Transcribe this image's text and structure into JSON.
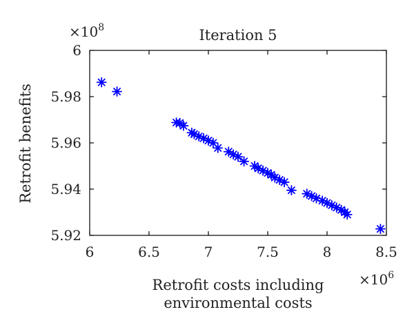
{
  "chart_data": {
    "type": "scatter",
    "title": "Iteration 5",
    "xlabel_line1": "Retrofit costs including",
    "xlabel_line2": "environmental costs",
    "ylabel": "Retrofit benefits",
    "x_multiplier_base": "×10",
    "x_multiplier_exp": "6",
    "y_multiplier_base": "×10",
    "y_multiplier_exp": "8",
    "xlim": [
      6,
      8.5
    ],
    "ylim": [
      5.92,
      6
    ],
    "xticks": [
      6,
      6.5,
      7,
      7.5,
      8,
      8.5
    ],
    "xtick_labels": [
      "6",
      "6.5",
      "7",
      "7.5",
      "8",
      "8.5"
    ],
    "yticks": [
      5.92,
      5.94,
      5.96,
      5.98,
      6
    ],
    "ytick_labels": [
      "5.92",
      "5.94",
      "5.96",
      "5.98",
      "6"
    ],
    "marker": "asterisk",
    "color": "#0000ff",
    "points": [
      [
        6.1,
        5.9862
      ],
      [
        6.23,
        5.9822
      ],
      [
        6.73,
        5.9688
      ],
      [
        6.76,
        5.9686
      ],
      [
        6.79,
        5.9674
      ],
      [
        6.86,
        5.9644
      ],
      [
        6.88,
        5.9638
      ],
      [
        6.92,
        5.9628
      ],
      [
        6.96,
        5.962
      ],
      [
        7.0,
        5.961
      ],
      [
        7.04,
        5.96
      ],
      [
        7.08,
        5.9578
      ],
      [
        7.17,
        5.9562
      ],
      [
        7.21,
        5.955
      ],
      [
        7.25,
        5.954
      ],
      [
        7.3,
        5.952
      ],
      [
        7.39,
        5.95
      ],
      [
        7.42,
        5.949
      ],
      [
        7.46,
        5.948
      ],
      [
        7.5,
        5.947
      ],
      [
        7.53,
        5.9462
      ],
      [
        7.56,
        5.945
      ],
      [
        7.6,
        5.944
      ],
      [
        7.64,
        5.943
      ],
      [
        7.7,
        5.9395
      ],
      [
        7.83,
        5.938
      ],
      [
        7.87,
        5.937
      ],
      [
        7.91,
        5.936
      ],
      [
        7.96,
        5.935
      ],
      [
        8.0,
        5.934
      ],
      [
        8.04,
        5.933
      ],
      [
        8.08,
        5.932
      ],
      [
        8.12,
        5.931
      ],
      [
        8.15,
        5.93
      ],
      [
        8.17,
        5.929
      ],
      [
        8.45,
        5.9228
      ]
    ]
  }
}
